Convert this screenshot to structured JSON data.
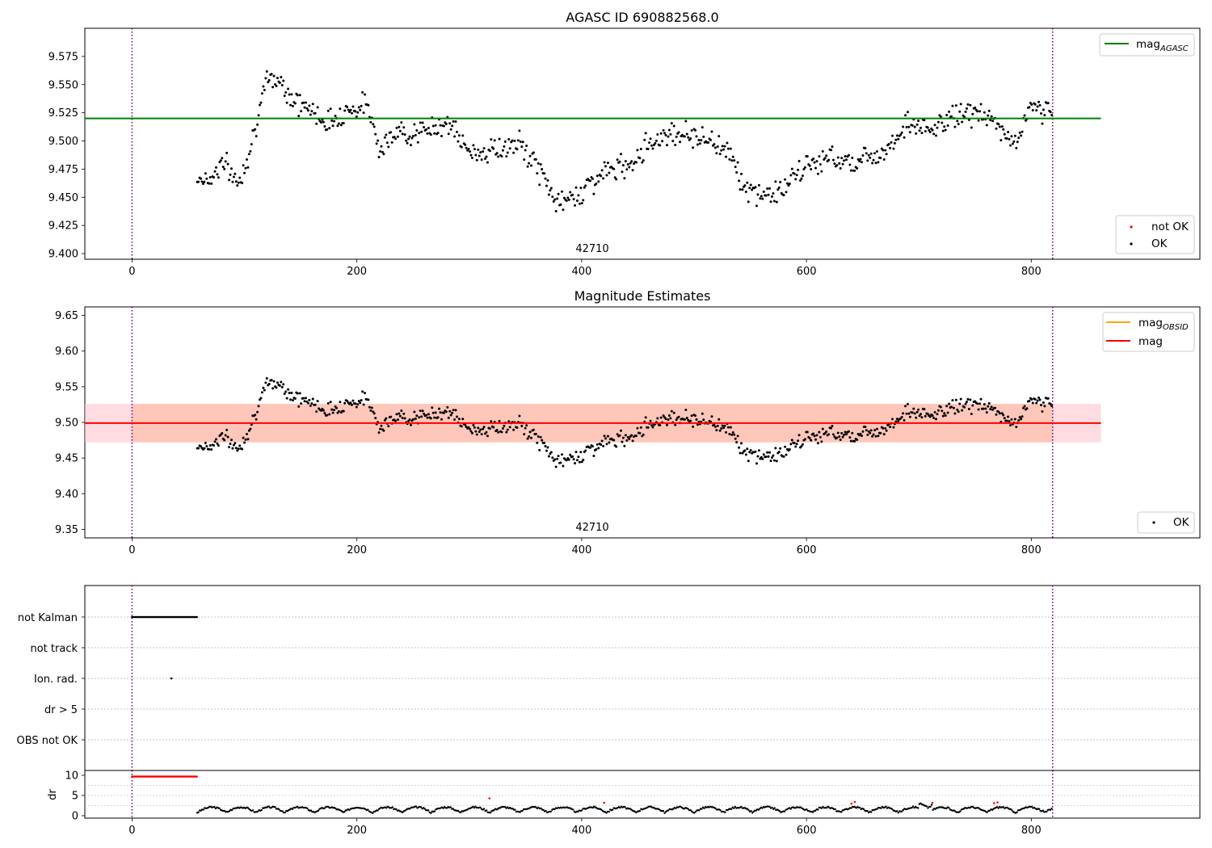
{
  "chart_data": [
    {
      "id": "p1",
      "type": "scatter",
      "title": "AGASC ID 690882568.0",
      "xlim": [
        -42,
        950
      ],
      "ylim": [
        9.395,
        9.6
      ],
      "xticks": [
        0,
        200,
        400,
        600,
        800
      ],
      "yticks": [
        9.4,
        9.425,
        9.45,
        9.475,
        9.5,
        9.525,
        9.55,
        9.575
      ],
      "ytick_labels": [
        "9.400",
        "9.425",
        "9.450",
        "9.475",
        "9.500",
        "9.525",
        "9.550",
        "9.575"
      ],
      "vlines": [
        0,
        819
      ],
      "annotation": {
        "text": "42710",
        "x": 410
      },
      "hline": {
        "name": "mag_AGASC",
        "y": 9.52,
        "x_range": [
          -42,
          862
        ],
        "color": "#008000"
      },
      "legend_lines": [
        {
          "label": "mag",
          "sub": "AGASC",
          "color": "#008000"
        }
      ],
      "legend_points": [
        {
          "label": "not OK",
          "color": "#ff0000"
        },
        {
          "label": "OK",
          "color": "#000000"
        }
      ],
      "series_profile": [
        [
          58,
          9.467
        ],
        [
          70,
          9.466
        ],
        [
          80,
          9.482
        ],
        [
          95,
          9.462
        ],
        [
          105,
          9.495
        ],
        [
          112,
          9.522
        ],
        [
          120,
          9.552
        ],
        [
          130,
          9.556
        ],
        [
          145,
          9.535
        ],
        [
          160,
          9.527
        ],
        [
          175,
          9.516
        ],
        [
          190,
          9.527
        ],
        [
          210,
          9.532
        ],
        [
          220,
          9.495
        ],
        [
          240,
          9.508
        ],
        [
          260,
          9.507
        ],
        [
          280,
          9.518
        ],
        [
          300,
          9.489
        ],
        [
          330,
          9.493
        ],
        [
          345,
          9.497
        ],
        [
          360,
          9.478
        ],
        [
          380,
          9.443
        ],
        [
          395,
          9.452
        ],
        [
          420,
          9.472
        ],
        [
          440,
          9.478
        ],
        [
          460,
          9.498
        ],
        [
          480,
          9.508
        ],
        [
          500,
          9.505
        ],
        [
          520,
          9.498
        ],
        [
          535,
          9.488
        ],
        [
          545,
          9.455
        ],
        [
          565,
          9.452
        ],
        [
          580,
          9.458
        ],
        [
          600,
          9.478
        ],
        [
          620,
          9.485
        ],
        [
          645,
          9.482
        ],
        [
          670,
          9.492
        ],
        [
          690,
          9.516
        ],
        [
          710,
          9.508
        ],
        [
          730,
          9.522
        ],
        [
          750,
          9.526
        ],
        [
          770,
          9.514
        ],
        [
          785,
          9.496
        ],
        [
          800,
          9.531
        ],
        [
          819,
          9.527
        ]
      ],
      "series_noise": 0.009,
      "series_x_range": [
        58,
        819
      ]
    },
    {
      "id": "p2",
      "type": "scatter",
      "title": "Magnitude Estimates",
      "xlim": [
        -42,
        950
      ],
      "ylim": [
        9.338,
        9.662
      ],
      "xticks": [
        0,
        200,
        400,
        600,
        800
      ],
      "yticks": [
        9.35,
        9.4,
        9.45,
        9.5,
        9.55,
        9.6,
        9.65
      ],
      "ytick_labels": [
        "9.35",
        "9.40",
        "9.45",
        "9.50",
        "9.55",
        "9.60",
        "9.65"
      ],
      "vlines": [
        0,
        819
      ],
      "annotation": {
        "text": "42710",
        "x": 410
      },
      "hline": {
        "name": "mag",
        "y": 9.499,
        "x_range": [
          -42,
          862
        ],
        "color": "#ff0000"
      },
      "bands": [
        {
          "y": [
            9.472,
            9.526
          ],
          "x_range": [
            -42,
            862
          ],
          "color": "#ffc0cb",
          "opacity": 0.55
        },
        {
          "y": [
            9.472,
            9.526
          ],
          "x_range": [
            0,
            819
          ],
          "color": "#ffa070",
          "opacity": 0.35
        }
      ],
      "legend_lines": [
        {
          "label": "mag",
          "sub": "OBSID",
          "color": "#ffa500"
        },
        {
          "label": "mag",
          "sub": "",
          "color": "#ff0000"
        }
      ],
      "legend_points": [
        {
          "label": "OK",
          "color": "#000000"
        }
      ]
    },
    {
      "id": "p3",
      "type": "scatter",
      "xlim": [
        -42,
        950
      ],
      "categories": [
        "not Kalman",
        "not track",
        "Ion. rad.",
        "dr > 5",
        "OBS not OK"
      ],
      "vlines": [
        0,
        819
      ],
      "flags": [
        {
          "category": "not Kalman",
          "x_range": [
            0,
            58
          ],
          "step": 1.2
        },
        {
          "category": "Ion. rad.",
          "x": 35
        }
      ]
    },
    {
      "id": "p4",
      "type": "scatter",
      "xlim": [
        -42,
        950
      ],
      "ylim": [
        -0.6,
        11.2
      ],
      "ylabel": "dr",
      "xticks": [
        0,
        200,
        400,
        600,
        800
      ],
      "yticks": [
        0,
        5,
        10
      ],
      "vlines": [
        0,
        819
      ],
      "red_flat": {
        "x_range": [
          0,
          58
        ],
        "y": 9.7,
        "step": 1.2
      },
      "red_points": [
        [
          318,
          4.3
        ],
        [
          420,
          3.2
        ],
        [
          640,
          3.0
        ],
        [
          643,
          3.4
        ],
        [
          712,
          3.2
        ],
        [
          767,
          3.1
        ],
        [
          770,
          3.3
        ]
      ]
    }
  ]
}
